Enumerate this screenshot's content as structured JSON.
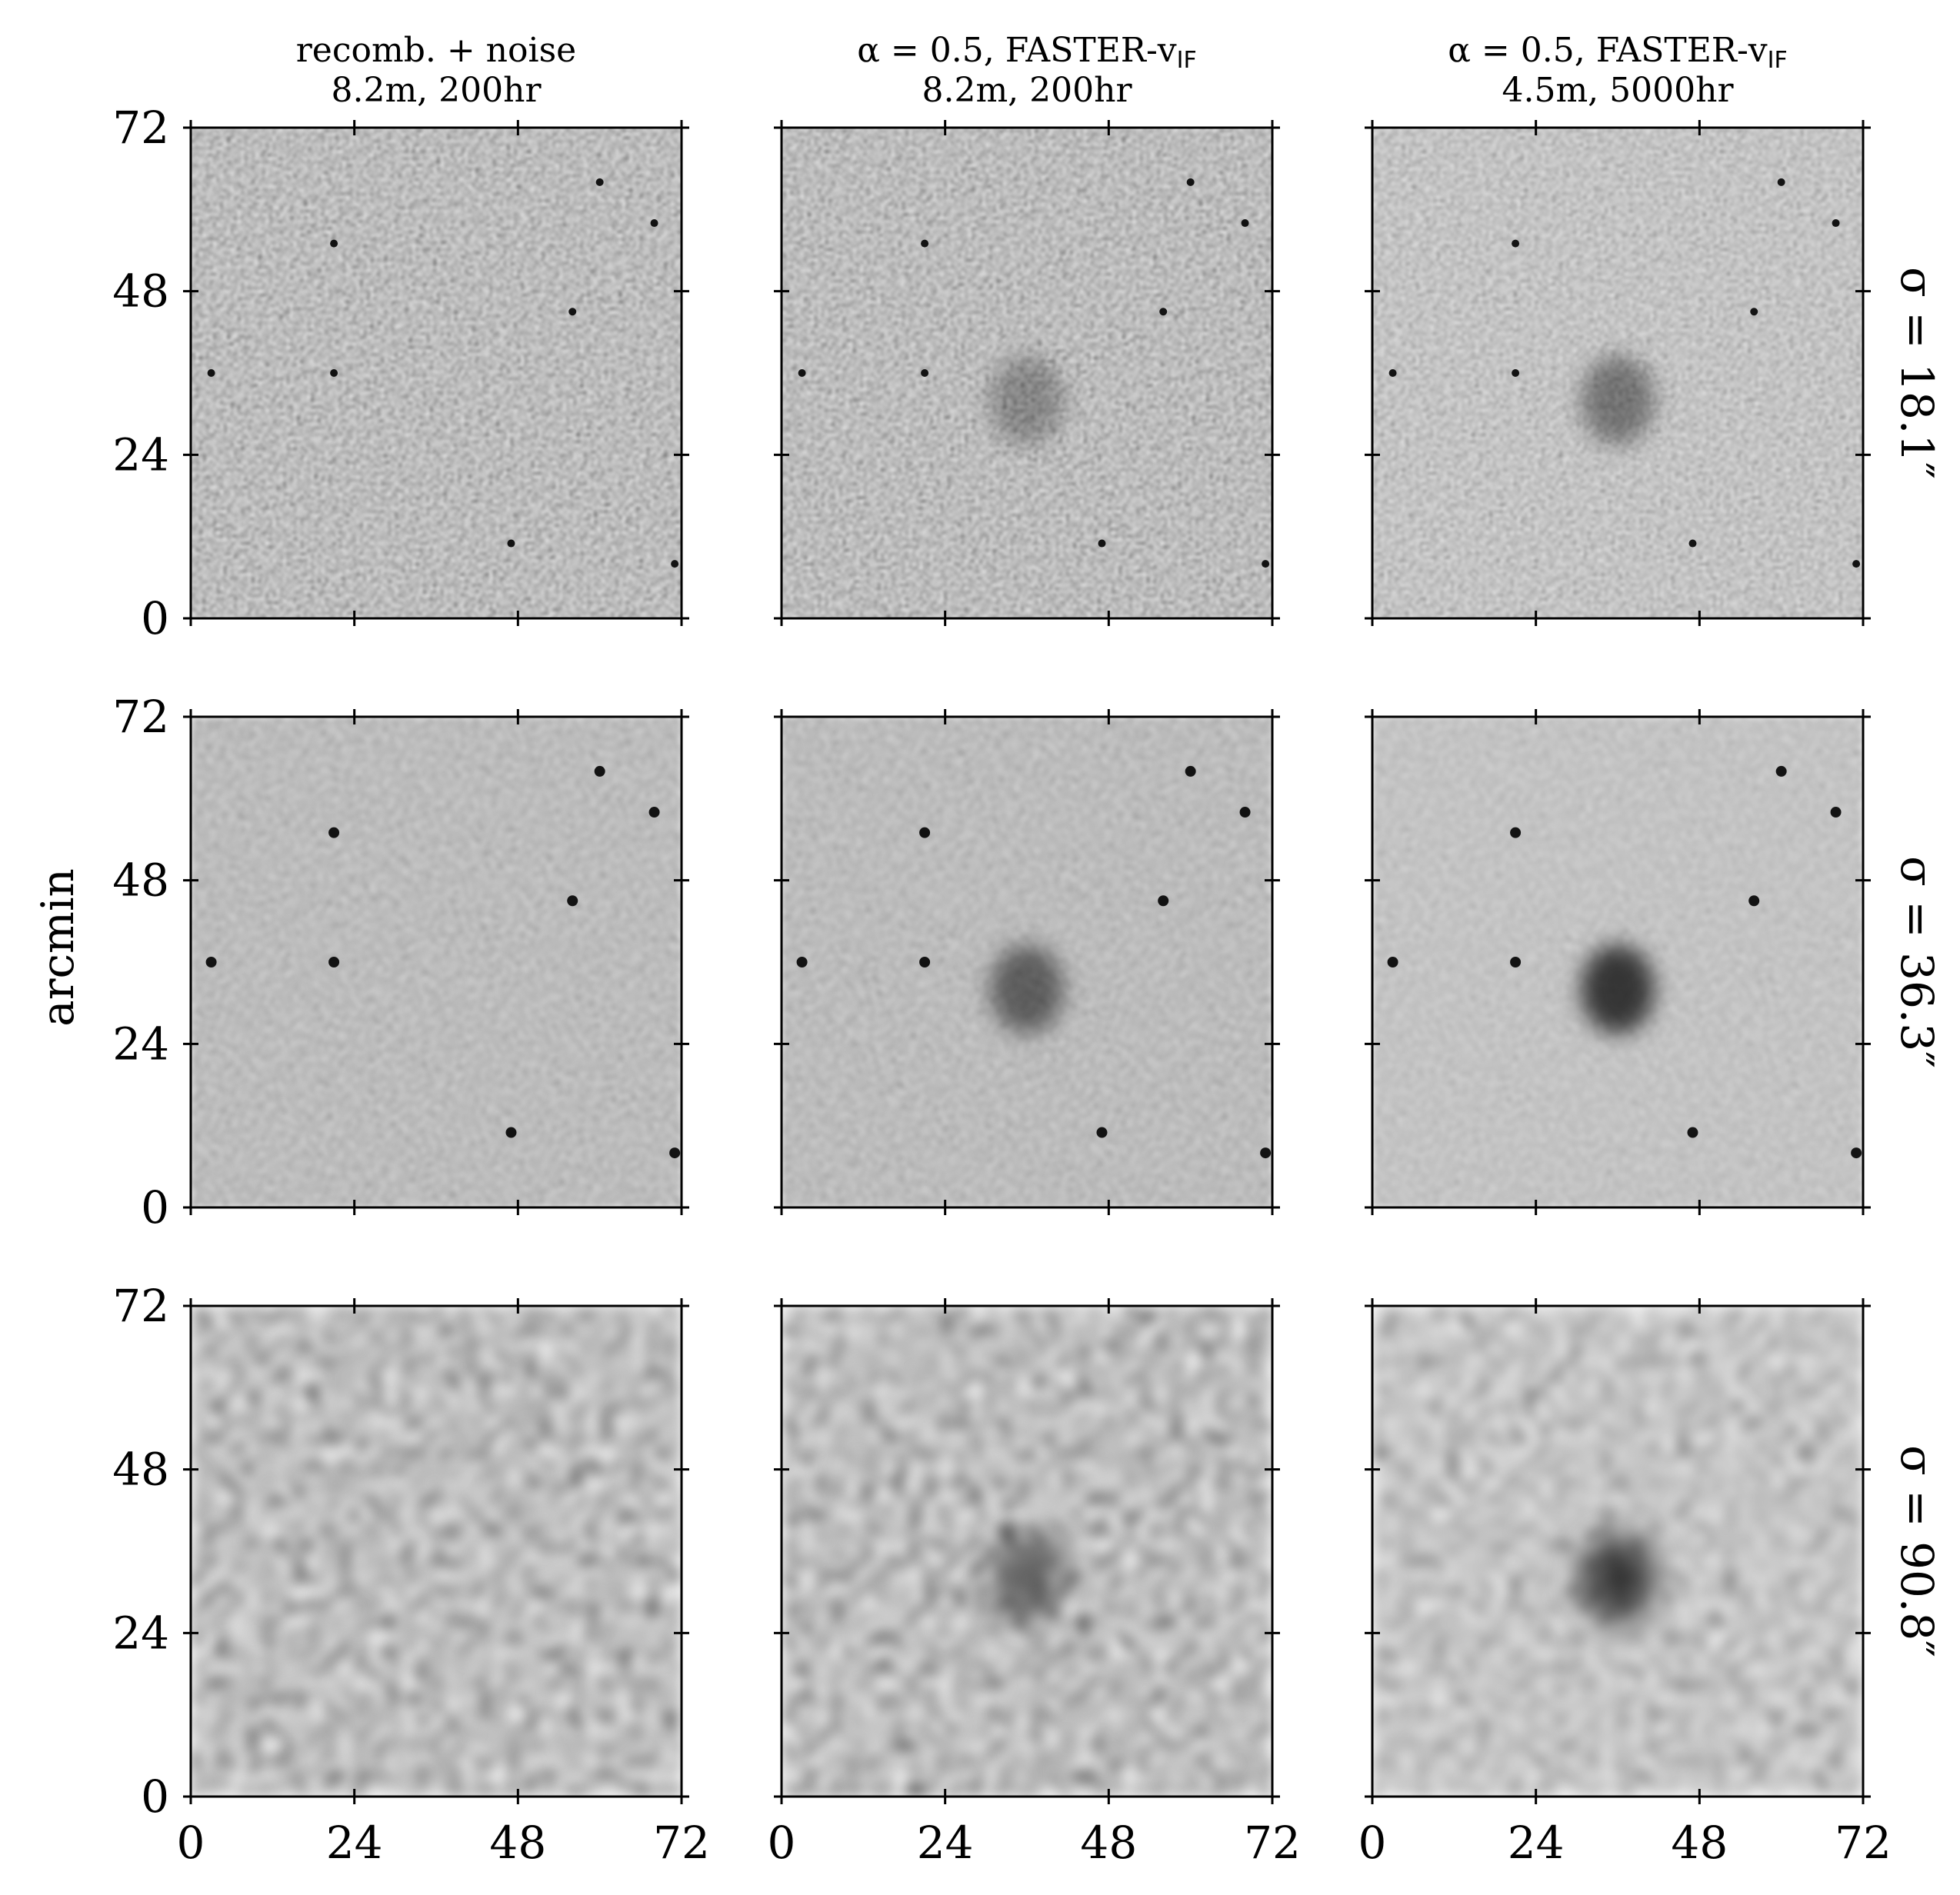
{
  "chart_data": {
    "type": "heatmap",
    "colormap": "grayscale",
    "ylabel": "arcmin",
    "xlim": [
      0,
      72
    ],
    "ylim": [
      0,
      72
    ],
    "xticks": [
      "0",
      "24",
      "48",
      "72"
    ],
    "yticks": [
      "0",
      "24",
      "48",
      "72"
    ],
    "columns": [
      {
        "line1": "recomb. + noise",
        "line2": "8.2m, 200hr"
      },
      {
        "line1": "α = 0.5, FASTER-v",
        "sub": "IF",
        "line2": "8.2m, 200hr"
      },
      {
        "line1": "α = 0.5, FASTER-v",
        "sub": "IF",
        "line2": "4.5m, 5000hr"
      }
    ],
    "rows": [
      {
        "label": "σ = 18.1″",
        "smoothing_arcsec": 18.1
      },
      {
        "label": "σ = 36.3″",
        "smoothing_arcsec": 36.3
      },
      {
        "label": "σ = 90.8″",
        "smoothing_arcsec": 90.8
      }
    ],
    "features": {
      "central_bubble_arcmin": [
        36,
        32
      ],
      "point_sources_arcmin": [
        [
          21,
          55
        ],
        [
          56,
          45
        ],
        [
          21,
          36
        ],
        [
          47,
          11
        ],
        [
          60,
          64
        ],
        [
          68,
          58
        ],
        [
          71,
          8
        ],
        [
          3,
          36
        ]
      ]
    }
  }
}
